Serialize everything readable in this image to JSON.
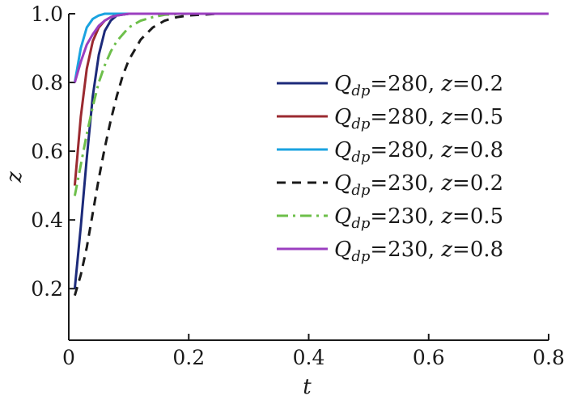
{
  "chart_data": {
    "type": "line",
    "title": "",
    "xlabel": "t",
    "ylabel": "z",
    "xlim": [
      0,
      0.8
    ],
    "ylim": [
      0.05,
      1.0
    ],
    "xticks": [
      "0",
      "0.2",
      "0.4",
      "0.6",
      "0.8"
    ],
    "yticks": [
      "0.2",
      "0.4",
      "0.6",
      "0.8",
      "1.0"
    ],
    "legend_position": "center-right",
    "grid": false,
    "series": [
      {
        "name_q": "280",
        "name_z": "0.2",
        "color": "#1c2a7a",
        "dash": "solid",
        "x": [
          0.01,
          0.02,
          0.03,
          0.04,
          0.05,
          0.06,
          0.07,
          0.08,
          0.1,
          0.12,
          0.15,
          0.2,
          0.4,
          0.6,
          0.8
        ],
        "y": [
          0.2,
          0.38,
          0.58,
          0.76,
          0.88,
          0.95,
          0.98,
          0.995,
          1.0,
          1.0,
          1.0,
          1.0,
          1.0,
          1.0,
          1.0
        ]
      },
      {
        "name_q": "280",
        "name_z": "0.5",
        "color": "#9b2a30",
        "dash": "solid",
        "x": [
          0.01,
          0.02,
          0.03,
          0.04,
          0.05,
          0.06,
          0.07,
          0.08,
          0.1,
          0.12,
          0.15,
          0.2,
          0.4,
          0.6,
          0.8
        ],
        "y": [
          0.5,
          0.7,
          0.84,
          0.92,
          0.96,
          0.98,
          0.99,
          0.997,
          1.0,
          1.0,
          1.0,
          1.0,
          1.0,
          1.0,
          1.0
        ]
      },
      {
        "name_q": "280",
        "name_z": "0.8",
        "color": "#1aa3e0",
        "dash": "solid",
        "x": [
          0.01,
          0.02,
          0.03,
          0.04,
          0.05,
          0.06,
          0.08,
          0.1,
          0.15,
          0.2,
          0.4,
          0.6,
          0.8
        ],
        "y": [
          0.8,
          0.9,
          0.96,
          0.985,
          0.995,
          1.0,
          1.0,
          1.0,
          1.0,
          1.0,
          1.0,
          1.0,
          1.0
        ]
      },
      {
        "name_q": "230",
        "name_z": "0.2",
        "color": "#1a1a1a",
        "dash": "dashed",
        "x": [
          0.01,
          0.02,
          0.03,
          0.04,
          0.05,
          0.06,
          0.07,
          0.08,
          0.09,
          0.1,
          0.12,
          0.14,
          0.16,
          0.18,
          0.2,
          0.25,
          0.3,
          0.4,
          0.6,
          0.8
        ],
        "y": [
          0.18,
          0.24,
          0.32,
          0.42,
          0.52,
          0.61,
          0.69,
          0.76,
          0.82,
          0.865,
          0.925,
          0.96,
          0.98,
          0.99,
          0.995,
          1.0,
          1.0,
          1.0,
          1.0,
          1.0
        ]
      },
      {
        "name_q": "230",
        "name_z": "0.5",
        "color": "#6dbf4a",
        "dash": "dashdot",
        "x": [
          0.01,
          0.02,
          0.03,
          0.04,
          0.05,
          0.06,
          0.07,
          0.08,
          0.1,
          0.12,
          0.14,
          0.16,
          0.2,
          0.3,
          0.4,
          0.6,
          0.8
        ],
        "y": [
          0.47,
          0.56,
          0.65,
          0.73,
          0.8,
          0.85,
          0.89,
          0.92,
          0.96,
          0.98,
          0.99,
          0.997,
          1.0,
          1.0,
          1.0,
          1.0,
          1.0
        ]
      },
      {
        "name_q": "230",
        "name_z": "0.8",
        "color": "#9b3fc0",
        "dash": "solid",
        "x": [
          0.01,
          0.02,
          0.03,
          0.04,
          0.05,
          0.06,
          0.07,
          0.08,
          0.1,
          0.12,
          0.15,
          0.2,
          0.4,
          0.6,
          0.8
        ],
        "y": [
          0.8,
          0.86,
          0.91,
          0.94,
          0.965,
          0.98,
          0.99,
          0.995,
          1.0,
          1.0,
          1.0,
          1.0,
          1.0,
          1.0,
          1.0
        ]
      }
    ]
  }
}
